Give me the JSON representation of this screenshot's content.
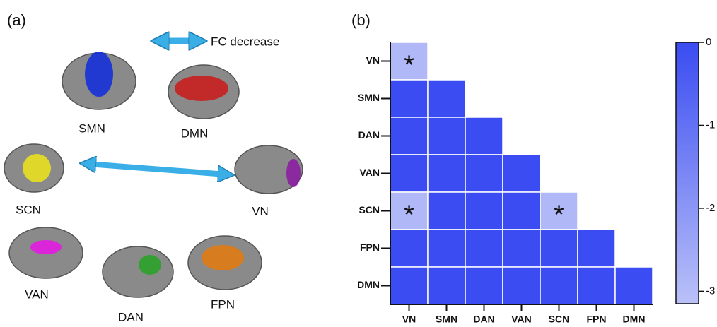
{
  "panel_a": {
    "label": "(a)",
    "legend": "FC decrease",
    "networks": [
      "SMN",
      "DMN",
      "SCN",
      "VN",
      "VAN",
      "DAN",
      "FPN"
    ]
  },
  "chart_data": {
    "type": "heatmap",
    "label": "(b)",
    "categories": [
      "VN",
      "SMN",
      "DAN",
      "VAN",
      "SCN",
      "FPN",
      "DMN"
    ],
    "values": [
      [
        -2.9,
        null,
        null,
        null,
        null,
        null,
        null
      ],
      [
        0,
        0,
        null,
        null,
        null,
        null,
        null
      ],
      [
        0,
        0,
        0,
        null,
        null,
        null,
        null
      ],
      [
        0,
        0,
        0,
        0,
        null,
        null,
        null
      ],
      [
        -2.9,
        0,
        0,
        0,
        -2.9,
        null,
        null
      ],
      [
        0,
        0,
        0,
        0,
        0,
        0,
        null
      ],
      [
        0,
        0,
        0,
        0,
        0,
        0,
        0
      ]
    ],
    "annotations": [
      {
        "row": 0,
        "col": 0,
        "text": "*"
      },
      {
        "row": 4,
        "col": 0,
        "text": "*"
      },
      {
        "row": 4,
        "col": 4,
        "text": "*"
      }
    ],
    "colors": [
      "#bac1f8",
      "#3a4cf2"
    ],
    "clim": [
      -3.15,
      0
    ],
    "cticks": [
      0,
      -1,
      -2,
      -3
    ]
  }
}
